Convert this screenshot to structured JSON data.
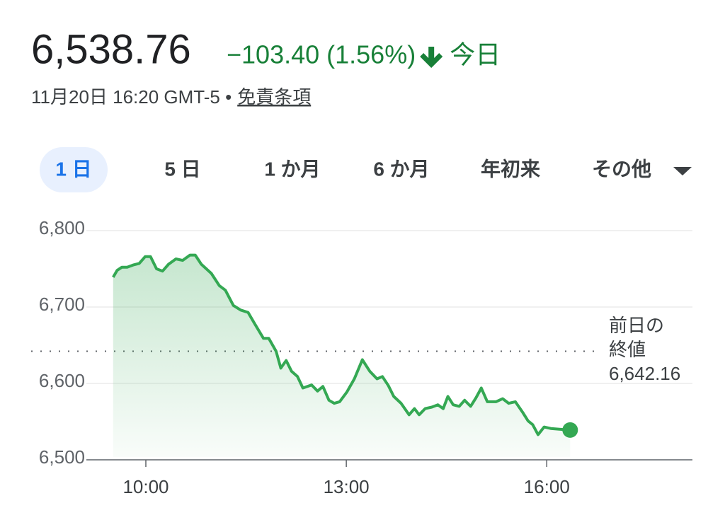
{
  "header": {
    "price": "6,538.76",
    "change": "−103.40 (1.56%)",
    "period": "今日",
    "date": "11月20日 16:20 GMT-5 •",
    "disclaimer": "免責条項"
  },
  "tabs": {
    "items": [
      "1 日",
      "5 日",
      "1 か月",
      "6 か月",
      "年初来",
      "その他"
    ],
    "selected": 0
  },
  "chart_data": {
    "type": "line",
    "color": "#34a853",
    "x": [
      9.51,
      9.57,
      9.64,
      9.72,
      9.81,
      9.9,
      9.99,
      10.07,
      10.16,
      10.25,
      10.34,
      10.45,
      10.55,
      10.66,
      10.74,
      10.83,
      10.98,
      11.1,
      11.19,
      11.31,
      11.42,
      11.53,
      11.63,
      11.76,
      11.84,
      11.95,
      12.02,
      12.1,
      12.18,
      12.27,
      12.35,
      12.48,
      12.57,
      12.65,
      12.74,
      12.82,
      12.9,
      13.01,
      13.12,
      13.24,
      13.35,
      13.46,
      13.54,
      13.63,
      13.71,
      13.82,
      13.94,
      14.02,
      14.09,
      14.18,
      14.28,
      14.37,
      14.45,
      14.52,
      14.6,
      14.69,
      14.77,
      14.86,
      14.94,
      15.02,
      15.11,
      15.24,
      15.34,
      15.43,
      15.53,
      15.64,
      15.72,
      15.79,
      15.87,
      15.96,
      16.06,
      16.19,
      16.35
    ],
    "values": [
      6739,
      6748,
      6752,
      6752,
      6755,
      6757,
      6766,
      6766,
      6750,
      6747,
      6756,
      6763,
      6761,
      6768,
      6768,
      6756,
      6744,
      6728,
      6722,
      6702,
      6696,
      6693,
      6678,
      6659,
      6659,
      6642,
      6620,
      6630,
      6616,
      6609,
      6594,
      6598,
      6590,
      6596,
      6578,
      6574,
      6576,
      6589,
      6606,
      6631,
      6616,
      6606,
      6609,
      6597,
      6583,
      6574,
      6559,
      6567,
      6559,
      6567,
      6569,
      6572,
      6567,
      6583,
      6572,
      6570,
      6578,
      6570,
      6581,
      6594,
      6576,
      6576,
      6580,
      6574,
      6576,
      6562,
      6551,
      6546,
      6533,
      6543,
      6541,
      6540,
      6539
    ],
    "xlim": [
      9.11,
      18.18
    ],
    "xticks": [
      {
        "value": 10,
        "label": "10:00"
      },
      {
        "value": 13,
        "label": "13:00"
      },
      {
        "value": 16,
        "label": "16:00"
      }
    ],
    "ylim": [
      6500,
      6800
    ],
    "yticks": [
      {
        "value": 6500,
        "label": "6,500"
      },
      {
        "value": 6600,
        "label": "6,600"
      },
      {
        "value": 6700,
        "label": "6,700"
      },
      {
        "value": 6800,
        "label": "6,800"
      }
    ],
    "grid": true,
    "reference": {
      "label_lines": [
        "前日の",
        "終値"
      ],
      "value": 6642.16,
      "value_label": "6,642.16"
    }
  }
}
